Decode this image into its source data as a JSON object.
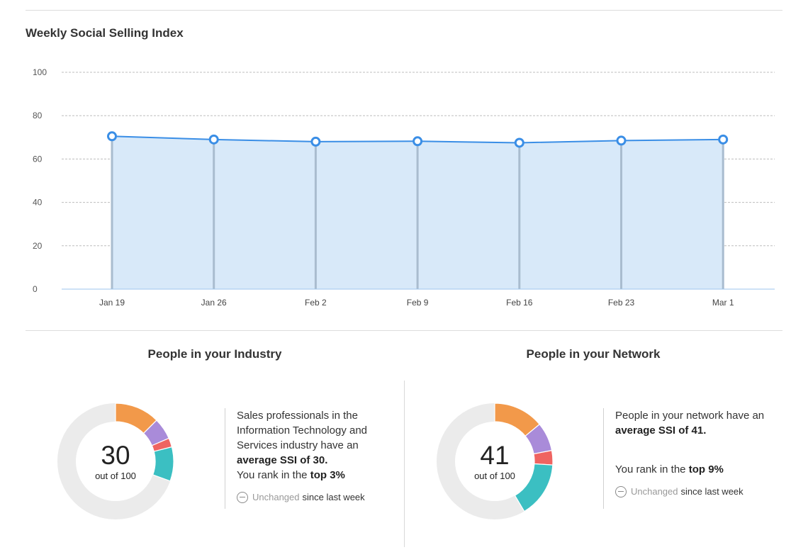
{
  "chart_data": {
    "type": "area",
    "title": "Weekly Social Selling Index",
    "categories": [
      "Jan 19",
      "Jan 26",
      "Feb 2",
      "Feb 9",
      "Feb 16",
      "Feb 23",
      "Mar 1"
    ],
    "values": [
      70.5,
      69,
      68,
      68.2,
      67.5,
      68.5,
      69
    ],
    "ylim": [
      0,
      100
    ],
    "yticks": [
      "100",
      "80",
      "60",
      "40",
      "20",
      "0"
    ],
    "grid": true,
    "colors": {
      "line": "#3a8ee6",
      "fill": "#d8e9f9",
      "marker_fill": "#ffffff",
      "drop_line": "#a9bccf",
      "grid": "#bdbdbd"
    }
  },
  "industry": {
    "title": "People in your Industry",
    "score": "30",
    "out_of": "out of 100",
    "desc_pre": "Sales professionals in the Information Technology and Services industry have an",
    "desc_bold": "average SSI of 30.",
    "rank_pre": "You rank in the",
    "rank_bold": "top 3%",
    "status_muted": "Unchanged",
    "status_rest": "since last week",
    "segments": [
      {
        "color": "#f2994a",
        "value": 12.5
      },
      {
        "color": "#a98bd9",
        "value": 6
      },
      {
        "color": "#ef6461",
        "value": 2.5
      },
      {
        "color": "#3bbfc2",
        "value": 9.5
      }
    ]
  },
  "network": {
    "title": "People in your Network",
    "score": "41",
    "out_of": "out of 100",
    "desc_pre": "People in your network have an",
    "desc_bold": "average SSI of 41.",
    "rank_pre": "You rank in the",
    "rank_bold": "top 9%",
    "status_muted": "Unchanged",
    "status_rest": "since last week",
    "segments": [
      {
        "color": "#f2994a",
        "value": 14
      },
      {
        "color": "#a98bd9",
        "value": 8
      },
      {
        "color": "#ef6461",
        "value": 4
      },
      {
        "color": "#3bbfc2",
        "value": 15.5
      }
    ]
  },
  "donut_track": "#ebebeb"
}
